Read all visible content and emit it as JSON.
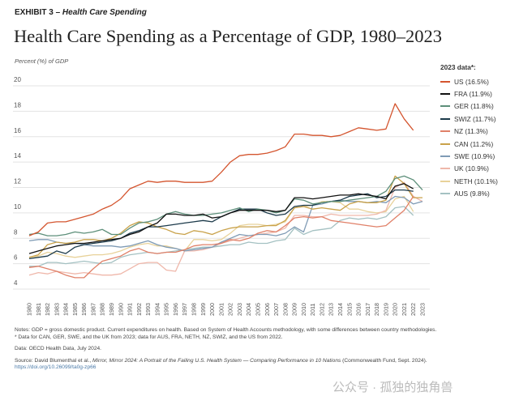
{
  "header": {
    "exhibit": "EXHIBIT 3 –",
    "exhibit_topic": "Health Care Spending",
    "title": "Health Care Spending as a Percentage of GDP, 1980–2023"
  },
  "chart_data": {
    "type": "line",
    "title": "Health Care Spending as a Percentage of GDP, 1980–2023",
    "ylabel": "Percent (%) of GDP",
    "xlabel": "",
    "ylim": [
      4,
      20
    ],
    "yticks": [
      4,
      6,
      8,
      10,
      12,
      14,
      16,
      18,
      20
    ],
    "grid": true,
    "legend_title": "2023 data*:",
    "legend_position": "right",
    "x": [
      1980,
      1981,
      1982,
      1983,
      1984,
      1985,
      1986,
      1987,
      1988,
      1989,
      1990,
      1991,
      1992,
      1993,
      1994,
      1995,
      1996,
      1997,
      1998,
      1999,
      2000,
      2001,
      2002,
      2003,
      2004,
      2005,
      2006,
      2007,
      2008,
      2009,
      2010,
      2011,
      2012,
      2013,
      2014,
      2015,
      2016,
      2017,
      2018,
      2019,
      2020,
      2021,
      2022,
      2023
    ],
    "series": [
      {
        "name": "US (16.5%)",
        "color": "#d4552f",
        "values": [
          8.2,
          8.5,
          9.2,
          9.3,
          9.3,
          9.5,
          9.7,
          9.9,
          10.3,
          10.6,
          11.1,
          11.9,
          12.2,
          12.5,
          12.4,
          12.5,
          12.5,
          12.4,
          12.4,
          12.4,
          12.5,
          13.2,
          14.0,
          14.5,
          14.6,
          14.6,
          14.7,
          14.9,
          15.2,
          16.2,
          16.2,
          16.1,
          16.1,
          16.0,
          16.1,
          16.4,
          16.7,
          16.6,
          16.5,
          16.6,
          18.6,
          17.4,
          16.5,
          null
        ]
      },
      {
        "name": "FRA (11.9%)",
        "color": "#111111",
        "values": [
          6.8,
          7.0,
          7.2,
          7.4,
          7.5,
          7.6,
          7.6,
          7.7,
          7.8,
          7.9,
          8.0,
          8.3,
          8.5,
          8.9,
          9.2,
          9.9,
          9.9,
          9.8,
          9.8,
          9.9,
          9.6,
          9.7,
          10.0,
          10.2,
          10.2,
          10.2,
          10.2,
          10.1,
          10.2,
          11.2,
          11.2,
          11.1,
          11.2,
          11.3,
          11.4,
          11.4,
          11.5,
          11.4,
          11.3,
          11.1,
          12.1,
          12.3,
          11.9,
          null
        ]
      },
      {
        "name": "GER (11.8%)",
        "color": "#5d8f7a",
        "values": [
          8.3,
          8.4,
          8.2,
          8.2,
          8.3,
          8.5,
          8.4,
          8.5,
          8.7,
          8.3,
          8.3,
          8.8,
          9.2,
          9.3,
          9.5,
          9.9,
          10.1,
          9.9,
          9.8,
          9.8,
          9.9,
          10.0,
          10.2,
          10.4,
          10.1,
          10.3,
          10.2,
          10.0,
          10.2,
          11.1,
          11.0,
          10.7,
          10.8,
          10.9,
          10.9,
          11.0,
          11.1,
          11.2,
          11.3,
          11.7,
          12.7,
          12.9,
          12.6,
          11.8
        ]
      },
      {
        "name": "SWIZ (11.7%)",
        "color": "#1c3a4a",
        "values": [
          6.4,
          6.5,
          6.6,
          7.0,
          6.8,
          7.3,
          7.5,
          7.6,
          7.7,
          7.8,
          8.0,
          8.4,
          8.6,
          8.9,
          8.9,
          9.0,
          9.1,
          9.2,
          9.3,
          9.4,
          9.3,
          9.7,
          10.0,
          10.3,
          10.3,
          10.3,
          10.0,
          9.8,
          9.9,
          10.5,
          10.6,
          10.6,
          10.8,
          10.9,
          11.0,
          11.3,
          11.4,
          11.5,
          11.2,
          11.3,
          11.8,
          11.8,
          11.7,
          null
        ]
      },
      {
        "name": "NZ (11.3%)",
        "color": "#e08068",
        "values": [
          5.7,
          5.8,
          5.6,
          5.4,
          5.1,
          4.9,
          4.9,
          5.6,
          6.2,
          6.4,
          6.6,
          7.0,
          7.2,
          6.9,
          6.8,
          6.9,
          6.9,
          7.1,
          7.4,
          7.5,
          7.5,
          7.6,
          7.9,
          7.8,
          8.0,
          8.4,
          8.6,
          8.5,
          9.0,
          9.6,
          9.7,
          9.6,
          9.7,
          9.4,
          9.3,
          9.2,
          9.1,
          9.0,
          8.9,
          9.0,
          9.6,
          10.2,
          11.3,
          null
        ]
      },
      {
        "name": "CAN (11.2%)",
        "color": "#c9a24a",
        "values": [
          6.5,
          6.7,
          7.5,
          7.7,
          7.6,
          7.7,
          7.9,
          7.9,
          7.8,
          8.0,
          8.4,
          9.0,
          9.3,
          9.2,
          8.9,
          8.7,
          8.4,
          8.3,
          8.6,
          8.5,
          8.3,
          8.6,
          8.8,
          8.9,
          8.9,
          8.9,
          9.0,
          9.0,
          9.4,
          10.4,
          10.5,
          10.3,
          10.4,
          10.3,
          10.2,
          10.7,
          10.9,
          10.8,
          10.8,
          11.0,
          12.9,
          12.3,
          11.2,
          11.2
        ]
      },
      {
        "name": "SWE (10.9%)",
        "color": "#7f9bb5",
        "values": [
          7.8,
          7.9,
          7.9,
          7.7,
          7.6,
          7.6,
          7.5,
          7.4,
          7.4,
          7.4,
          7.3,
          7.4,
          7.6,
          7.8,
          7.5,
          7.3,
          7.2,
          7.0,
          7.1,
          7.2,
          7.3,
          7.7,
          8.0,
          8.3,
          8.2,
          8.3,
          8.3,
          8.2,
          8.4,
          8.9,
          8.5,
          10.6,
          10.7,
          10.9,
          11.0,
          10.9,
          10.9,
          10.8,
          10.9,
          10.8,
          11.3,
          11.2,
          10.7,
          10.9
        ]
      },
      {
        "name": "UK (10.9%)",
        "color": "#efb7aa",
        "values": [
          5.1,
          5.3,
          5.2,
          5.4,
          5.3,
          5.2,
          5.3,
          5.2,
          5.1,
          5.1,
          5.2,
          5.6,
          6.0,
          6.1,
          6.1,
          5.5,
          5.4,
          7.0,
          7.0,
          7.1,
          7.3,
          7.6,
          7.8,
          8.0,
          8.2,
          8.3,
          8.4,
          8.5,
          8.8,
          9.8,
          9.8,
          9.7,
          9.7,
          9.9,
          9.8,
          9.8,
          9.8,
          9.8,
          9.9,
          10.2,
          12.0,
          12.4,
          11.3,
          10.9
        ]
      },
      {
        "name": "NETH (10.1%)",
        "color": "#e8d29a",
        "values": [
          6.5,
          6.6,
          6.9,
          6.8,
          6.6,
          6.5,
          6.6,
          6.7,
          6.7,
          6.8,
          7.0,
          7.3,
          7.5,
          7.6,
          7.4,
          7.4,
          7.2,
          7.0,
          7.9,
          7.9,
          7.8,
          7.9,
          8.4,
          9.0,
          9.1,
          9.1,
          9.0,
          9.1,
          9.3,
          10.4,
          10.5,
          10.6,
          10.9,
          10.9,
          10.8,
          10.3,
          10.3,
          10.1,
          10.0,
          10.1,
          11.1,
          11.3,
          10.1,
          null
        ]
      },
      {
        "name": "AUS (9.8%)",
        "color": "#a4c1c2",
        "values": [
          5.8,
          5.8,
          6.1,
          6.1,
          6.0,
          6.1,
          6.2,
          6.1,
          6.0,
          6.1,
          6.5,
          6.7,
          6.8,
          6.9,
          6.8,
          6.9,
          7.0,
          7.1,
          7.2,
          7.3,
          7.3,
          7.4,
          7.5,
          7.5,
          7.7,
          7.6,
          7.6,
          7.8,
          7.9,
          8.8,
          8.3,
          8.6,
          8.7,
          8.8,
          9.4,
          9.6,
          9.5,
          9.6,
          9.5,
          9.7,
          10.4,
          10.5,
          9.8,
          null
        ]
      }
    ]
  },
  "footer": {
    "notes": "Notes: GDP = gross domestic product. Current expenditures on health. Based on System of Health Accounts methodology, with some differences between country methodologies.",
    "notes_asterisk": "* Data for CAN, GER, SWE, and the UK from 2023; data for AUS, FRA, NETH, NZ, SWIZ, and the US from 2022.",
    "data_source": "Data: OECD Health Data, July 2024.",
    "source_prefix": "Source: David Blumenthal et al.,",
    "source_title": "Mirror, Mirror 2024: A Portrait of the Failing U.S. Health System — Comparing Performance in 10 Nations",
    "source_suffix": "(Commonwealth Fund, Sept. 2024).",
    "doi": "https://doi.org/10.26099/ta0g-zp66",
    "watermark": "公众号 · 孤独的独角兽"
  }
}
